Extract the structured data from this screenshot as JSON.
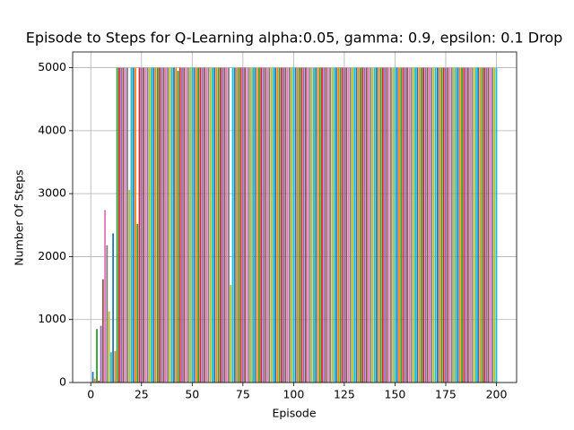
{
  "chart_data": {
    "type": "bar",
    "title": "Episode to Steps for Q-Learning alpha:0.05, gamma: 0.9, epsilon: 0.1 Drop",
    "xlabel": "Episode",
    "ylabel": "Number Of Steps",
    "x": [
      1,
      2,
      3,
      4,
      5,
      6,
      7,
      8,
      9,
      10,
      11,
      12,
      13,
      14,
      15,
      16,
      17,
      18,
      19,
      20,
      21,
      22,
      23,
      24,
      25,
      26,
      27,
      28,
      29,
      30,
      31,
      32,
      33,
      34,
      35,
      36,
      37,
      38,
      39,
      40,
      41,
      42,
      43,
      44,
      45,
      46,
      47,
      48,
      49,
      50,
      51,
      52,
      53,
      54,
      55,
      56,
      57,
      58,
      59,
      60,
      61,
      62,
      63,
      64,
      65,
      66,
      67,
      68,
      69,
      70,
      71,
      72,
      73,
      74,
      75,
      76,
      77,
      78,
      79,
      80,
      81,
      82,
      83,
      84,
      85,
      86,
      87,
      88,
      89,
      90,
      91,
      92,
      93,
      94,
      95,
      96,
      97,
      98,
      99,
      100,
      101,
      102,
      103,
      104,
      105,
      106,
      107,
      108,
      109,
      110,
      111,
      112,
      113,
      114,
      115,
      116,
      117,
      118,
      119,
      120,
      121,
      122,
      123,
      124,
      125,
      126,
      127,
      128,
      129,
      130,
      131,
      132,
      133,
      134,
      135,
      136,
      137,
      138,
      139,
      140,
      141,
      142,
      143,
      144,
      145,
      146,
      147,
      148,
      149,
      150,
      151,
      152,
      153,
      154,
      155,
      156,
      157,
      158,
      159,
      160,
      161,
      162,
      163,
      164,
      165,
      166,
      167,
      168,
      169,
      170,
      171,
      172,
      173,
      174,
      175,
      176,
      177,
      178,
      179,
      180,
      181,
      182,
      183,
      184,
      185,
      186,
      187,
      188,
      189,
      190,
      191,
      192,
      193,
      194,
      195,
      196,
      197,
      198,
      199,
      200
    ],
    "values": [
      170,
      60,
      850,
      30,
      900,
      1640,
      2740,
      2180,
      1130,
      480,
      2370,
      500,
      5000,
      5000,
      5000,
      5000,
      5000,
      5000,
      3060,
      5000,
      5000,
      5000,
      2520,
      5000,
      5000,
      5000,
      5000,
      5000,
      5000,
      5000,
      5000,
      5000,
      5000,
      5000,
      5000,
      5000,
      5000,
      5000,
      5000,
      5000,
      5000,
      5000,
      4950,
      5000,
      5000,
      5000,
      5000,
      5000,
      5000,
      5000,
      5000,
      5000,
      5000,
      5000,
      5000,
      5000,
      5000,
      5000,
      5000,
      5000,
      5000,
      5000,
      5000,
      5000,
      5000,
      5000,
      5000,
      5000,
      1550,
      5000,
      5000,
      5000,
      5000,
      5000,
      5000,
      5000,
      5000,
      5000,
      5000,
      5000,
      5000,
      5000,
      5000,
      5000,
      5000,
      5000,
      5000,
      5000,
      5000,
      5000,
      5000,
      5000,
      5000,
      5000,
      5000,
      5000,
      5000,
      5000,
      5000,
      5000,
      5000,
      5000,
      5000,
      5000,
      5000,
      5000,
      5000,
      5000,
      5000,
      5000,
      5000,
      5000,
      5000,
      5000,
      5000,
      5000,
      5000,
      5000,
      5000,
      5000,
      5000,
      5000,
      5000,
      5000,
      5000,
      5000,
      5000,
      5000,
      5000,
      5000,
      5000,
      5000,
      5000,
      5000,
      5000,
      5000,
      5000,
      5000,
      5000,
      5000,
      5000,
      5000,
      5000,
      5000,
      5000,
      5000,
      5000,
      5000,
      5000,
      5000,
      5000,
      5000,
      5000,
      5000,
      5000,
      5000,
      5000,
      5000,
      5000,
      5000,
      5000,
      5000,
      5000,
      5000,
      5000,
      5000,
      5000,
      5000,
      5000,
      5000,
      5000,
      5000,
      5000,
      5000,
      5000,
      5000,
      5000,
      5000,
      5000,
      5000,
      5000,
      5000,
      5000,
      5000,
      5000,
      5000,
      5000,
      5000,
      5000,
      5000,
      5000,
      5000,
      5000,
      5000,
      5000,
      5000,
      5000,
      5000,
      5000,
      5000
    ],
    "colors": [
      "#1f77b4",
      "#ff7f0e",
      "#2ca02c",
      "#d62728",
      "#9467bd",
      "#8c564b",
      "#e377c2",
      "#7f7f7f",
      "#bcbd22",
      "#17becf"
    ],
    "xlim": [
      -8.95,
      209.95
    ],
    "xticks": [
      0,
      25,
      50,
      75,
      100,
      125,
      150,
      175,
      200
    ],
    "ylim": [
      0,
      5250
    ],
    "yticks": [
      0,
      1000,
      2000,
      3000,
      4000,
      5000
    ],
    "grid": true
  }
}
